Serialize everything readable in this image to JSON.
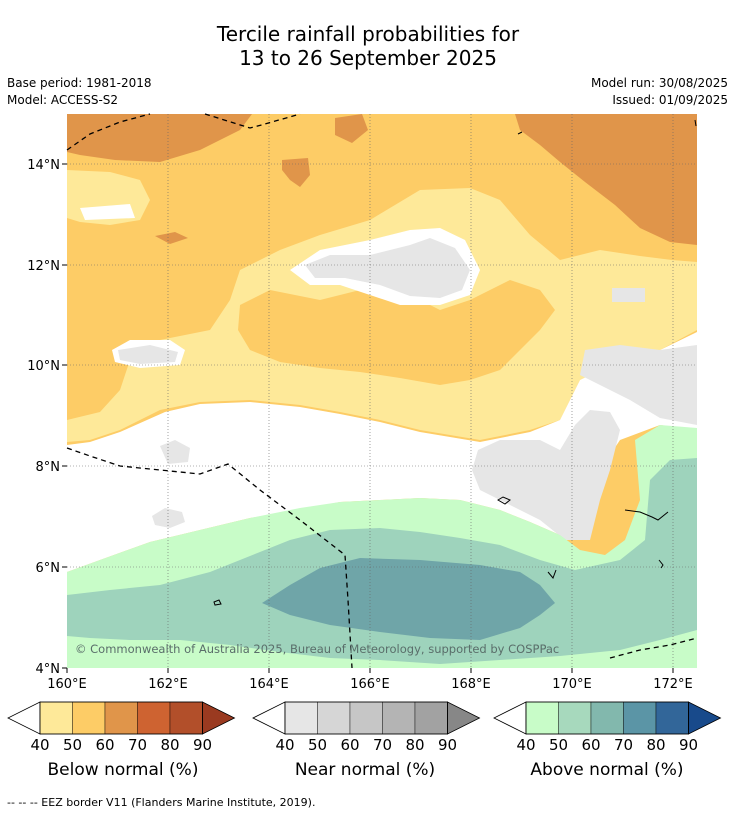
{
  "header": {
    "title_line1": "Tercile rainfall probabilities for",
    "title_line2": "13 to 26 September 2025",
    "base_period": "Base period: 1981-2018",
    "model": "Model: ACCESS-S2",
    "model_run": "Model run: 30/08/2025",
    "issued": "Issued: 01/09/2025"
  },
  "map": {
    "lon_ticks": [
      "160°E",
      "162°E",
      "164°E",
      "166°E",
      "168°E",
      "170°E",
      "172°E"
    ],
    "lat_ticks": [
      "14°N",
      "12°N",
      "10°N",
      "8°N",
      "6°N",
      "4°N"
    ],
    "copyright": "© Commonwealth of Australia 2025, Bureau of Meteorology, supported by COSPPac",
    "colors": {
      "below_40": "#fee999",
      "below_50": "#fdcc66",
      "below_60": "#e0954a",
      "near_40": "#e6e6e6",
      "above_40": "#c8fcc8",
      "above_50": "#9ed3bc",
      "above_60": "#6fa5a8"
    }
  },
  "legend": {
    "below": {
      "label": "Below normal (%)",
      "ticks": [
        "40",
        "50",
        "60",
        "70",
        "80",
        "90"
      ],
      "colors": [
        "#fee999",
        "#fdcc66",
        "#e0954a",
        "#ce6331",
        "#b24f2a",
        "#9a3a20"
      ]
    },
    "near": {
      "label": "Near normal (%)",
      "ticks": [
        "40",
        "50",
        "60",
        "70",
        "80",
        "90"
      ],
      "colors": [
        "#e6e6e6",
        "#d6d6d6",
        "#c6c6c6",
        "#b4b4b4",
        "#a2a2a2",
        "#878787"
      ]
    },
    "above": {
      "label": "Above normal (%)",
      "ticks": [
        "40",
        "50",
        "60",
        "70",
        "80",
        "90"
      ],
      "colors": [
        "#c8fcc8",
        "#a7d9bd",
        "#82b8ad",
        "#5b95a6",
        "#326699",
        "#184a8b"
      ]
    }
  },
  "footer": {
    "eez": "--  --  -- EEZ border V11 (Flanders Marine Institute, 2019)."
  }
}
